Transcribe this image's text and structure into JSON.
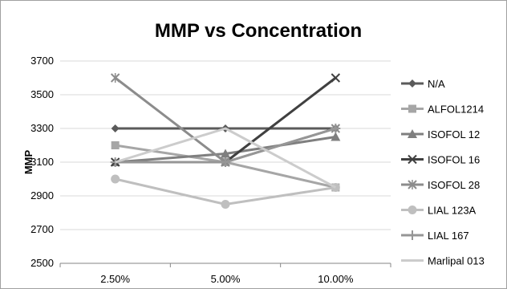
{
  "chart_data": {
    "type": "line",
    "title": "MMP vs Concentration",
    "xlabel": "",
    "ylabel": "MMP",
    "categories": [
      "2.50%",
      "5.00%",
      "10.00%"
    ],
    "ylim": [
      2500,
      3700
    ],
    "yticks": [
      2500,
      2700,
      2900,
      3100,
      3300,
      3500,
      3700
    ],
    "grid": "horizontal",
    "legend_position": "right",
    "series": [
      {
        "name": "N/A",
        "values": [
          3300,
          3300,
          3300
        ],
        "color": "#5a5a5a",
        "marker": "diamond"
      },
      {
        "name": "ALFOL1214",
        "values": [
          3200,
          3100,
          2950
        ],
        "color": "#a6a6a6",
        "marker": "square"
      },
      {
        "name": "ISOFOL 12",
        "values": [
          3100,
          3150,
          3250
        ],
        "color": "#7f7f7f",
        "marker": "triangle"
      },
      {
        "name": "ISOFOL 16",
        "values": [
          3100,
          3100,
          3600
        ],
        "color": "#404040",
        "marker": "x"
      },
      {
        "name": "ISOFOL 28",
        "values": [
          3600,
          3100,
          3300
        ],
        "color": "#8c8c8c",
        "marker": "star"
      },
      {
        "name": "LIAL 123A",
        "values": [
          3000,
          2850,
          2950
        ],
        "color": "#bfbfbf",
        "marker": "circle"
      },
      {
        "name": "LIAL 167",
        "values": [
          3100,
          3100,
          3300
        ],
        "color": "#969696",
        "marker": "plus"
      },
      {
        "name": "Marlipal 013",
        "values": [
          3100,
          3300,
          2950
        ],
        "color": "#cccccc",
        "marker": "none"
      }
    ]
  }
}
